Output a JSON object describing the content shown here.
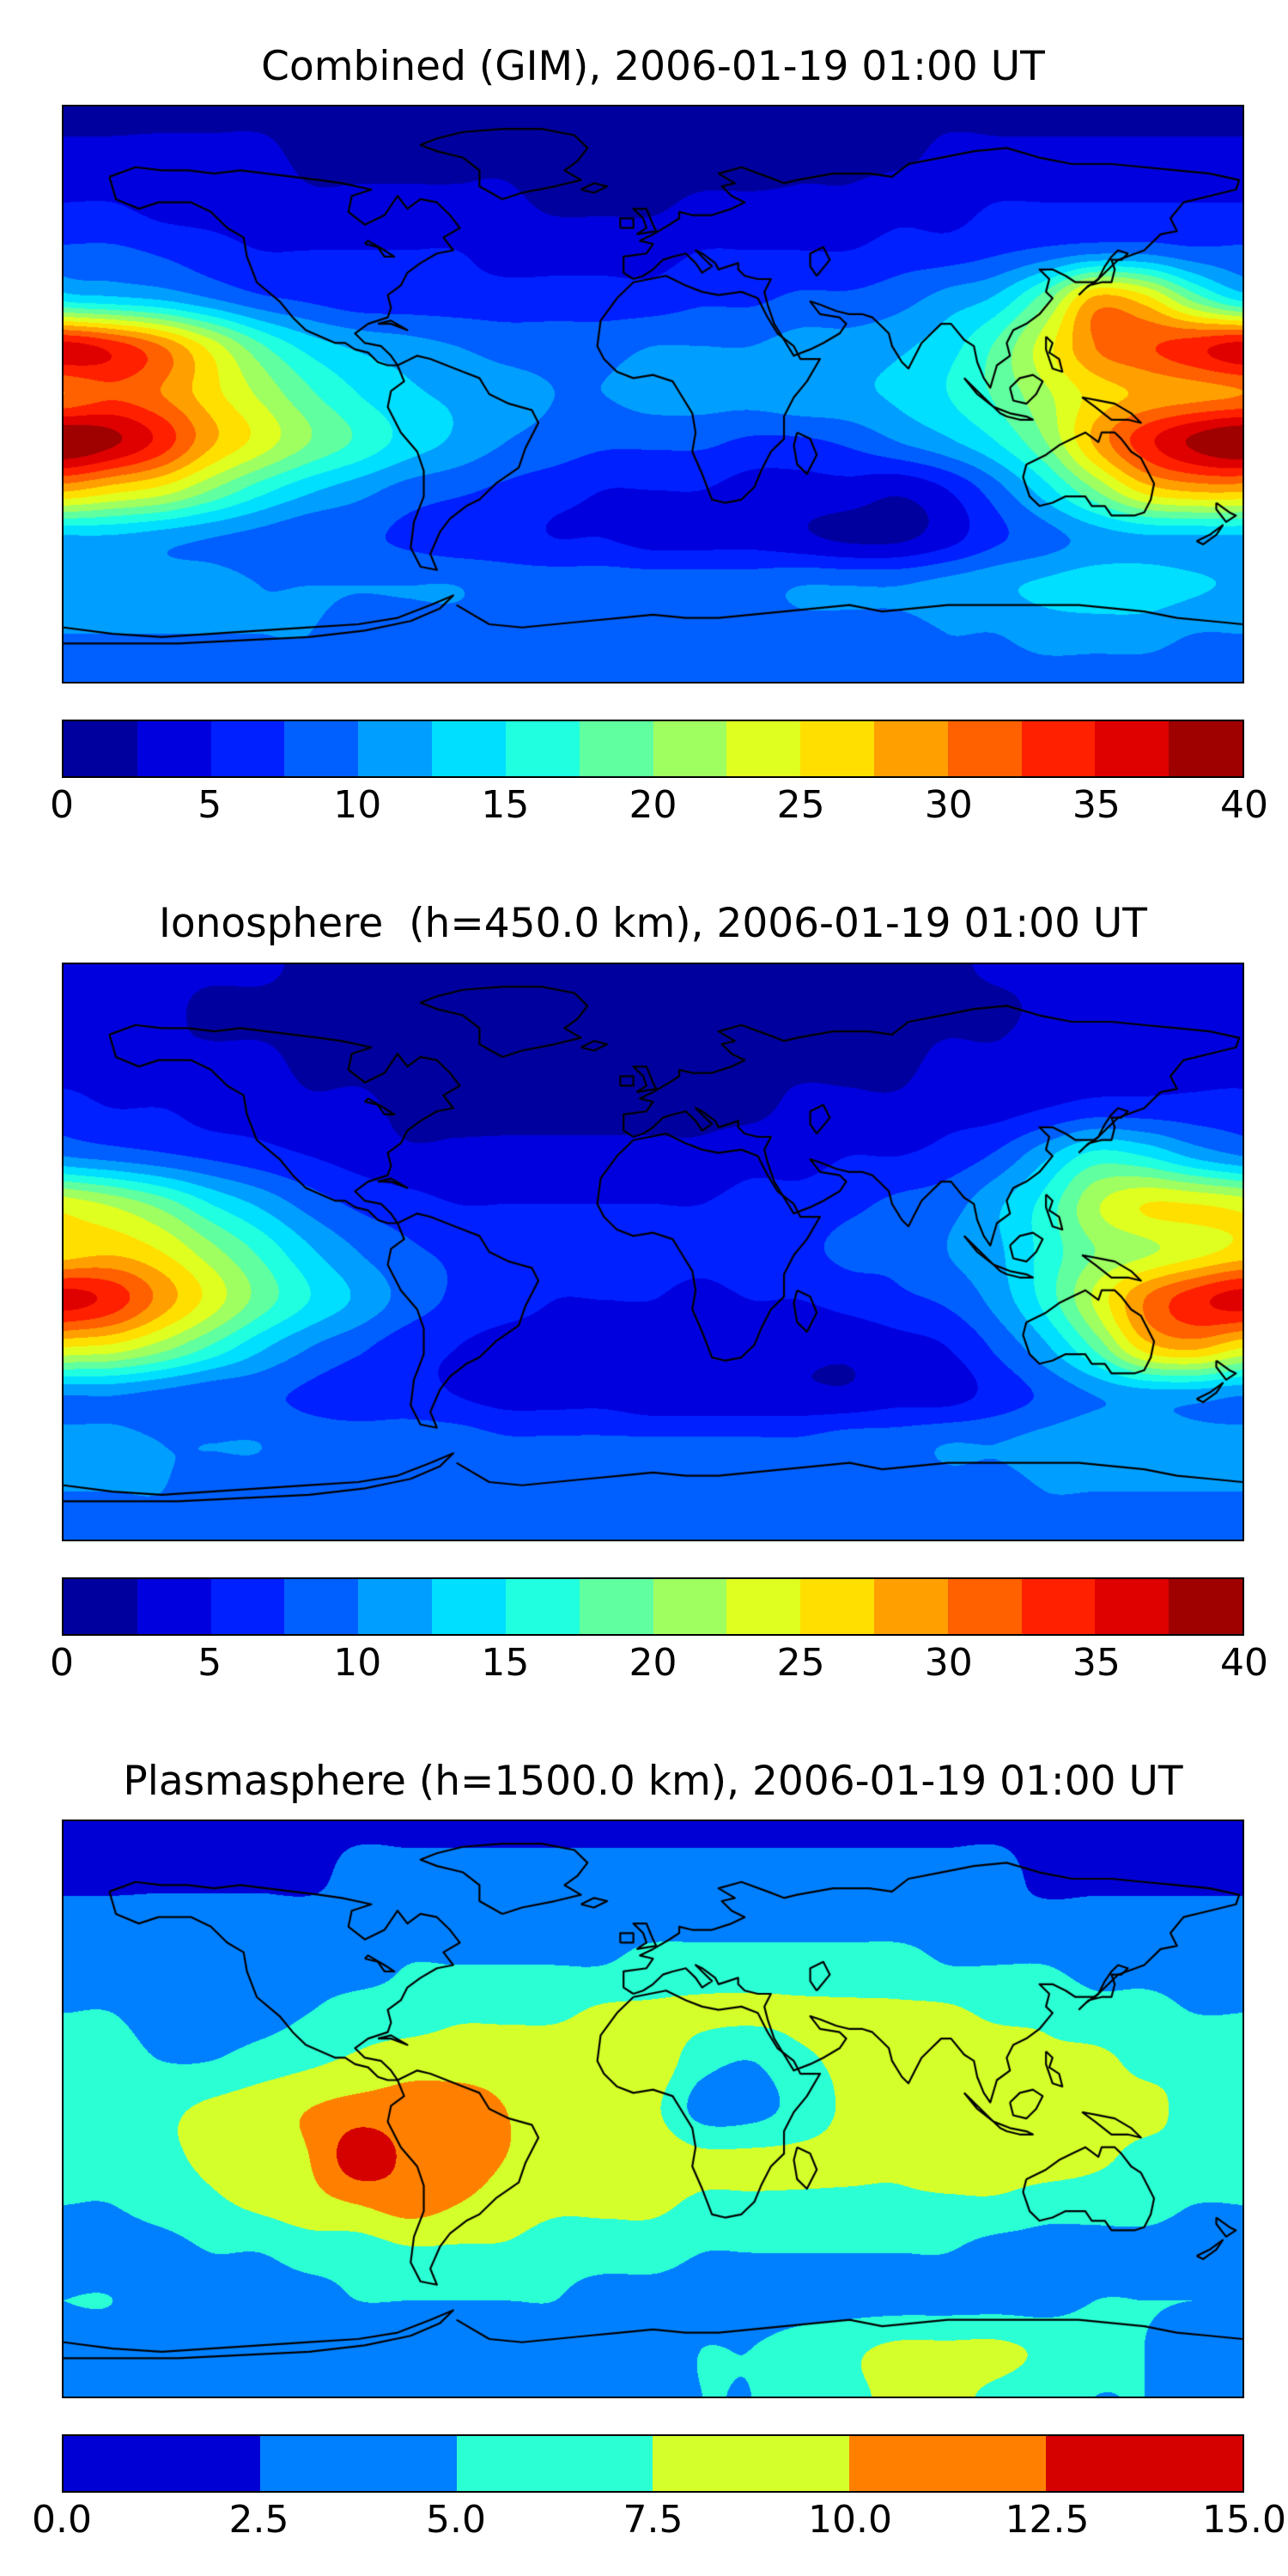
{
  "figure": {
    "background": "#ffffff",
    "map_border_color": "#000000",
    "coastline_color": "#000000"
  },
  "chart_data": [
    {
      "type": "heatmap",
      "title": "Combined (GIM), 2006-01-19 01:00 UT",
      "colormap": "jet",
      "projection": "equirectangular",
      "zlim": [
        0,
        40
      ],
      "n_levels": 16,
      "colorbar_position": "bottom",
      "colorbar_ticks": [
        "0",
        "5",
        "10",
        "15",
        "20",
        "25",
        "30",
        "35",
        "40"
      ],
      "lon": [
        -180,
        -165,
        -150,
        -135,
        -120,
        -105,
        -90,
        -75,
        -60,
        -45,
        -30,
        -15,
        0,
        15,
        30,
        45,
        60,
        75,
        90,
        105,
        120,
        135,
        150,
        165,
        180
      ],
      "lat": [
        90,
        75,
        60,
        45,
        30,
        15,
        0,
        -15,
        -30,
        -45,
        -60,
        -75,
        -90
      ],
      "values": [
        [
          2,
          2,
          2,
          2,
          2,
          2,
          2,
          2,
          2,
          2,
          1,
          1,
          1,
          1,
          1,
          2,
          2,
          2,
          2,
          2,
          2,
          2,
          2,
          2,
          2
        ],
        [
          3,
          3,
          3,
          3,
          3,
          2,
          2,
          2,
          2,
          2,
          1,
          1,
          1,
          1,
          1,
          2,
          2,
          2,
          3,
          3,
          3,
          3,
          3,
          3,
          3
        ],
        [
          5,
          5,
          4,
          4,
          4,
          3,
          3,
          3,
          3,
          3,
          2,
          2,
          2,
          3,
          3,
          3,
          3,
          4,
          4,
          5,
          5,
          5,
          5,
          5,
          5
        ],
        [
          8,
          8,
          7,
          6,
          5,
          5,
          5,
          5,
          5,
          4,
          4,
          4,
          4,
          5,
          5,
          5,
          5,
          6,
          6,
          7,
          8,
          9,
          9,
          8,
          8
        ],
        [
          14,
          13,
          12,
          10,
          8,
          7,
          6,
          6,
          6,
          6,
          6,
          6,
          6,
          7,
          7,
          8,
          8,
          9,
          11,
          13,
          19,
          28,
          26,
          19,
          14
        ],
        [
          36,
          34,
          30,
          24,
          18,
          14,
          12,
          11,
          10,
          9,
          9,
          9,
          10,
          10,
          10,
          11,
          11,
          12,
          14,
          18,
          24,
          30,
          32,
          34,
          36
        ],
        [
          30,
          32,
          30,
          26,
          22,
          18,
          15,
          13,
          12,
          11,
          10,
          10,
          11,
          11,
          11,
          12,
          12,
          13,
          15,
          18,
          22,
          26,
          28,
          29,
          30
        ],
        [
          40,
          38,
          34,
          28,
          24,
          20,
          17,
          14,
          12,
          10,
          9,
          8,
          8,
          8,
          7,
          7,
          8,
          10,
          12,
          15,
          20,
          28,
          34,
          38,
          40
        ],
        [
          28,
          26,
          24,
          20,
          16,
          13,
          11,
          9,
          8,
          7,
          6,
          5,
          5,
          5,
          4,
          4,
          4,
          3,
          5,
          9,
          14,
          20,
          26,
          28,
          28
        ],
        [
          12,
          12,
          11,
          10,
          9,
          8,
          8,
          7,
          6,
          6,
          5,
          5,
          4,
          4,
          4,
          3,
          2,
          2,
          4,
          7,
          9,
          11,
          12,
          12,
          12
        ],
        [
          12,
          12,
          11,
          11,
          10,
          10,
          10,
          10,
          10,
          9,
          9,
          9,
          9,
          9,
          9,
          10,
          10,
          10,
          11,
          12,
          13,
          14,
          14,
          13,
          12
        ],
        [
          10,
          10,
          10,
          10,
          10,
          10,
          9,
          9,
          9,
          9,
          8,
          8,
          8,
          8,
          8,
          9,
          9,
          9,
          10,
          10,
          11,
          11,
          11,
          10,
          10
        ],
        [
          9,
          9,
          9,
          9,
          9,
          9,
          9,
          9,
          9,
          9,
          9,
          9,
          9,
          9,
          9,
          9,
          9,
          9,
          9,
          9,
          9,
          9,
          9,
          9,
          9
        ]
      ]
    },
    {
      "type": "heatmap",
      "title": "Ionosphere  (h=450.0 km), 2006-01-19 01:00 UT",
      "colormap": "jet",
      "projection": "equirectangular",
      "zlim": [
        0,
        40
      ],
      "n_levels": 16,
      "colorbar_position": "bottom",
      "colorbar_ticks": [
        "0",
        "5",
        "10",
        "15",
        "20",
        "25",
        "30",
        "35",
        "40"
      ],
      "lon": [
        -180,
        -165,
        -150,
        -135,
        -120,
        -105,
        -90,
        -75,
        -60,
        -45,
        -30,
        -15,
        0,
        15,
        30,
        45,
        60,
        75,
        90,
        105,
        120,
        135,
        150,
        165,
        180
      ],
      "lat": [
        90,
        75,
        60,
        45,
        30,
        15,
        0,
        -15,
        -30,
        -45,
        -60,
        -75,
        -90
      ],
      "values": [
        [
          3,
          3,
          3,
          3,
          3,
          2,
          2,
          2,
          2,
          2,
          2,
          2,
          2,
          2,
          2,
          2,
          2,
          2,
          2,
          3,
          3,
          3,
          3,
          3,
          3
        ],
        [
          3,
          3,
          3,
          2,
          2,
          2,
          2,
          2,
          1,
          1,
          1,
          1,
          1,
          1,
          1,
          1,
          1,
          2,
          2,
          2,
          3,
          3,
          3,
          3,
          3
        ],
        [
          4,
          4,
          3,
          3,
          3,
          2,
          2,
          2,
          2,
          1,
          1,
          1,
          1,
          1,
          2,
          2,
          2,
          2,
          3,
          3,
          4,
          4,
          4,
          4,
          4
        ],
        [
          6,
          5,
          5,
          4,
          4,
          3,
          3,
          2,
          2,
          2,
          2,
          2,
          2,
          2,
          2,
          3,
          3,
          3,
          4,
          4,
          5,
          6,
          6,
          6,
          6
        ],
        [
          10,
          9,
          8,
          7,
          6,
          5,
          4,
          3,
          3,
          3,
          3,
          3,
          3,
          3,
          4,
          4,
          5,
          5,
          6,
          8,
          12,
          16,
          15,
          12,
          10
        ],
        [
          24,
          22,
          19,
          15,
          12,
          9,
          7,
          6,
          5,
          5,
          5,
          5,
          5,
          5,
          6,
          6,
          7,
          8,
          9,
          12,
          16,
          22,
          25,
          25,
          24
        ],
        [
          26,
          27,
          25,
          21,
          17,
          13,
          10,
          8,
          7,
          6,
          6,
          6,
          6,
          6,
          7,
          7,
          8,
          8,
          10,
          12,
          16,
          20,
          22,
          24,
          26
        ],
        [
          36,
          34,
          29,
          24,
          19,
          15,
          12,
          9,
          7,
          6,
          5,
          5,
          5,
          4,
          5,
          5,
          6,
          7,
          8,
          11,
          16,
          23,
          30,
          34,
          36
        ],
        [
          25,
          24,
          21,
          17,
          13,
          10,
          8,
          6,
          5,
          4,
          4,
          3,
          3,
          3,
          3,
          3,
          3,
          4,
          5,
          8,
          12,
          18,
          26,
          28,
          25
        ],
        [
          10,
          10,
          9,
          8,
          8,
          7,
          6,
          6,
          5,
          4,
          4,
          4,
          3,
          3,
          3,
          3,
          3,
          4,
          4,
          6,
          8,
          10,
          11,
          11,
          10
        ],
        [
          11,
          11,
          10,
          10,
          10,
          9,
          9,
          9,
          9,
          8,
          8,
          8,
          8,
          8,
          8,
          8,
          9,
          9,
          10,
          10,
          11,
          12,
          12,
          11,
          11
        ],
        [
          10,
          10,
          10,
          9,
          9,
          9,
          9,
          8,
          8,
          8,
          8,
          8,
          8,
          8,
          8,
          8,
          8,
          8,
          9,
          9,
          10,
          10,
          10,
          10,
          10
        ],
        [
          9,
          9,
          9,
          9,
          9,
          9,
          9,
          9,
          9,
          9,
          9,
          9,
          9,
          9,
          9,
          9,
          9,
          9,
          9,
          9,
          9,
          9,
          9,
          9,
          9
        ]
      ]
    },
    {
      "type": "heatmap",
      "title": "Plasmasphere (h=1500.0 km), 2006-01-19 01:00 UT",
      "colormap": "jet",
      "projection": "equirectangular",
      "zlim": [
        0,
        15
      ],
      "n_levels": 6,
      "colorbar_position": "bottom",
      "colorbar_ticks": [
        "0.0",
        "2.5",
        "5.0",
        "7.5",
        "10.0",
        "12.5",
        "15.0"
      ],
      "lon": [
        -180,
        -165,
        -150,
        -135,
        -120,
        -105,
        -90,
        -75,
        -60,
        -45,
        -30,
        -15,
        0,
        15,
        30,
        45,
        60,
        75,
        90,
        105,
        120,
        135,
        150,
        165,
        180
      ],
      "lat": [
        90,
        75,
        60,
        45,
        30,
        15,
        0,
        -15,
        -30,
        -45,
        -60,
        -75,
        -90
      ],
      "values": [
        [
          2,
          2,
          2,
          2,
          2,
          2,
          2,
          2,
          2,
          2,
          2,
          2,
          2,
          2,
          2,
          2,
          2,
          2,
          2,
          2,
          2,
          2,
          2,
          2,
          2
        ],
        [
          2,
          2,
          2,
          2,
          2,
          2,
          3,
          3,
          3,
          3,
          3,
          3,
          3,
          3,
          3,
          3,
          3,
          3,
          3,
          3,
          2,
          2,
          2,
          2,
          2
        ],
        [
          3,
          3,
          3,
          3,
          3,
          3,
          3,
          4,
          4,
          4,
          4,
          4,
          4,
          4,
          4,
          4,
          4,
          4,
          4,
          3,
          3,
          3,
          3,
          3,
          3
        ],
        [
          4,
          4,
          3,
          3,
          3,
          4,
          4,
          5,
          5,
          5,
          5,
          5,
          6,
          6,
          6,
          6,
          6,
          6,
          5,
          5,
          5,
          4,
          4,
          4,
          4
        ],
        [
          5,
          5,
          4,
          4,
          4,
          5,
          6,
          6,
          7,
          7,
          7,
          8,
          8,
          8,
          8,
          8,
          8,
          8,
          8,
          7,
          7,
          6,
          6,
          5,
          5
        ],
        [
          6,
          6,
          5,
          5,
          6,
          7,
          8,
          9,
          9,
          9,
          9,
          9,
          9,
          6,
          5,
          7,
          8,
          9,
          9,
          9,
          8,
          8,
          7,
          7,
          6
        ],
        [
          7,
          7,
          7,
          8,
          9,
          10,
          11,
          11,
          11,
          10,
          9,
          9,
          8,
          4,
          4,
          6,
          8,
          9,
          9,
          9,
          9,
          8,
          8,
          7,
          7
        ],
        [
          6,
          6,
          7,
          8,
          9,
          10,
          14,
          12,
          11,
          10,
          9,
          9,
          9,
          8,
          8,
          8,
          8,
          8,
          9,
          9,
          9,
          8,
          7,
          7,
          6
        ],
        [
          5,
          5,
          6,
          7,
          8,
          9,
          10,
          11,
          10,
          9,
          8,
          8,
          8,
          7,
          7,
          7,
          7,
          7,
          7,
          7,
          6,
          6,
          6,
          5,
          5
        ],
        [
          4,
          4,
          4,
          5,
          5,
          6,
          6,
          7,
          7,
          7,
          6,
          6,
          6,
          5,
          5,
          5,
          5,
          5,
          5,
          4,
          4,
          4,
          4,
          4,
          4
        ],
        [
          5,
          5,
          4,
          4,
          4,
          4,
          5,
          5,
          5,
          5,
          5,
          4,
          4,
          4,
          4,
          4,
          4,
          4,
          4,
          4,
          4,
          5,
          5,
          5,
          5
        ],
        [
          4,
          4,
          4,
          4,
          3,
          3,
          3,
          3,
          3,
          3,
          4,
          4,
          4,
          5,
          5,
          6,
          7,
          8,
          8,
          8,
          7,
          6,
          5,
          4,
          4
        ],
        [
          4,
          4,
          4,
          4,
          3,
          3,
          3,
          3,
          3,
          3,
          3,
          4,
          4,
          5,
          5,
          6,
          7,
          8,
          8,
          7,
          6,
          5,
          5,
          4,
          4
        ]
      ]
    }
  ]
}
